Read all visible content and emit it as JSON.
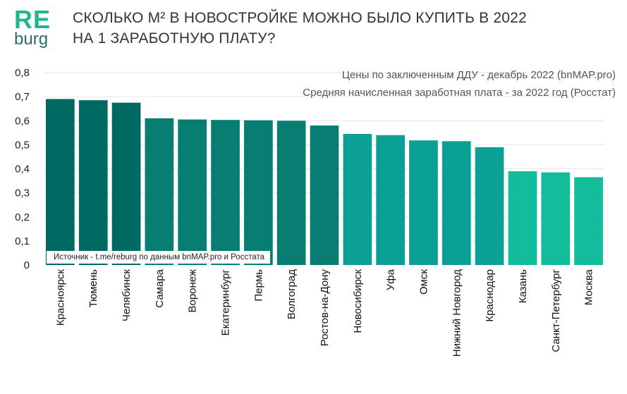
{
  "logo": {
    "top": "RE",
    "bottom": "burg"
  },
  "header": {
    "title_line1": "СКОЛЬКО М² В НОВОСТРОЙКЕ МОЖНО БЫЛО КУПИТЬ В 2022",
    "title_line2": "НА 1 ЗАРАБОТНУЮ ПЛАТУ?"
  },
  "notes": {
    "prices": "Цены по заключенным ДДУ - декабрь 2022 (bnMAP.pro)",
    "salary": "Средняя начисленная заработная плата - за 2022 год (Росстат)"
  },
  "source": "Источник - t.me/reburg  по данным bnMAP.pro и Росстата",
  "chart_data": {
    "type": "bar",
    "categories": [
      "Красноярск",
      "Тюмень",
      "Челябинск",
      "Самара",
      "Воронеж",
      "Екатеринбург",
      "Пермь",
      "Волгоград",
      "Ростов-на-Дону",
      "Новосибирск",
      "Уфа",
      "Омск",
      "Нижний Новгород",
      "Краснодар",
      "Казань",
      "Санкт-Петербург",
      "Москва"
    ],
    "values": [
      0.69,
      0.685,
      0.675,
      0.61,
      0.605,
      0.603,
      0.602,
      0.6,
      0.58,
      0.545,
      0.54,
      0.518,
      0.515,
      0.49,
      0.39,
      0.385,
      0.365
    ],
    "yticks": [
      "0",
      "0,1",
      "0,2",
      "0,3",
      "0,4",
      "0,5",
      "0,6",
      "0,7",
      "0,8"
    ],
    "ylim": [
      0,
      0.8
    ],
    "grid": true,
    "colors": [
      "#006962",
      "#006962",
      "#006962",
      "#087e72",
      "#087e72",
      "#087e72",
      "#087e72",
      "#087e72",
      "#087e72",
      "#0aa095",
      "#0aa095",
      "#0aa095",
      "#0aa095",
      "#0aa095",
      "#13bc9b",
      "#13bc9b",
      "#13bc9b"
    ]
  }
}
